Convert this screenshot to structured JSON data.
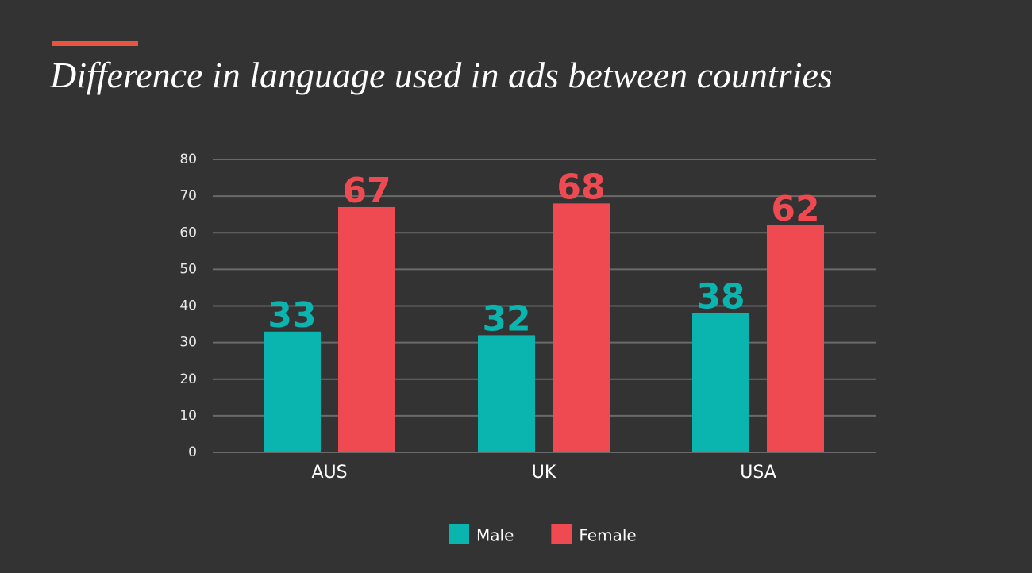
{
  "chart_data": {
    "type": "bar",
    "title": "Difference in language used in ads between countries",
    "categories": [
      "AUS",
      "UK",
      "USA"
    ],
    "series": [
      {
        "name": "Male",
        "color": "#0ab5b0",
        "values": [
          33,
          32,
          38
        ]
      },
      {
        "name": "Female",
        "color": "#ef4a52",
        "values": [
          67,
          68,
          62
        ]
      }
    ],
    "ylim": [
      0,
      80
    ],
    "yticks": [
      0,
      10,
      20,
      30,
      40,
      50,
      60,
      70,
      80
    ],
    "grid": true,
    "legend": "bottom"
  }
}
